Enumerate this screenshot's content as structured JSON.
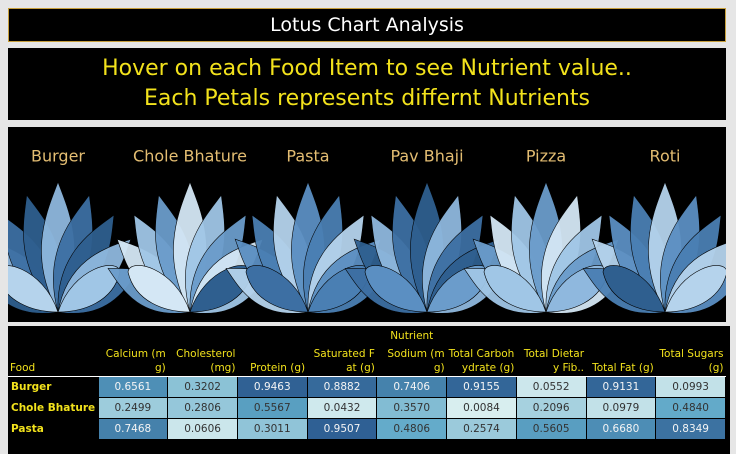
{
  "header": {
    "title": "Lotus Chart Analysis"
  },
  "banner": {
    "lines": [
      "Hover on each Food Item to see Nutrient value..",
      "Each Petals represents differnt Nutrients"
    ]
  },
  "lotus": {
    "foods": [
      "Burger",
      "Chole Bhature",
      "Pasta",
      "Pav Bhaji",
      "Pizza",
      "Roti"
    ]
  },
  "table": {
    "group_header": "Nutrient",
    "row_header": "Food",
    "columns": [
      "Calcium (mg)",
      "Cholesterol (mg)",
      "Protein (g)",
      "Saturated Fat (g)",
      "Sodium (mg)",
      "Total Carbohydrate (g)",
      "Total Dietary Fib..",
      "Total Fat (g)",
      "Total Sugars (g)"
    ],
    "rows": [
      {
        "food": "Burger",
        "values": [
          "0.6561",
          "0.3202",
          "0.9463",
          "0.8882",
          "0.7406",
          "0.9155",
          "0.0552",
          "0.9131",
          "0.0993"
        ]
      },
      {
        "food": "Chole Bhature",
        "values": [
          "0.2499",
          "0.2806",
          "0.5567",
          "0.0432",
          "0.3570",
          "0.0084",
          "0.2096",
          "0.0979",
          "0.4840"
        ]
      },
      {
        "food": "Pasta",
        "values": [
          "0.7468",
          "0.0606",
          "0.3011",
          "0.9507",
          "0.4806",
          "0.2574",
          "0.5605",
          "0.6680",
          "0.8349"
        ]
      }
    ]
  }
}
